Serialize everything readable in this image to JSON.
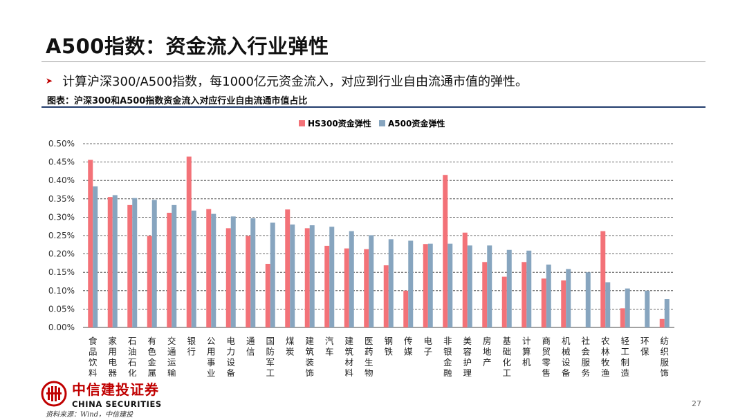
{
  "slide": {
    "title": "A500指数：资金流入行业弹性",
    "bullet": "计算沪深300/A500指数，每1000亿元资金流入，对应到行业自由流通市值的弹性。",
    "caption": "图表：沪深300和A500指数资金流入对应行业自由流通市值占比",
    "logo_cn": "中信建投证券",
    "logo_en": "CHINA SECURITIES",
    "source": "资料来源：Wind，中信建投",
    "page_number": "27"
  },
  "colors": {
    "hs300": "#f37278",
    "a500": "#87a5bf",
    "brand_red": "#c00000",
    "rule_navy": "#1f3b6b"
  },
  "chart_data": {
    "type": "bar",
    "title": "",
    "xlabel": "",
    "ylabel": "",
    "ylim": [
      0,
      0.5
    ],
    "yticks": [
      "0.00%",
      "0.05%",
      "0.10%",
      "0.15%",
      "0.20%",
      "0.25%",
      "0.30%",
      "0.35%",
      "0.40%",
      "0.45%",
      "0.50%"
    ],
    "grid": "dashed horizontal",
    "legend": "top-center",
    "categories": [
      "食品饮料",
      "家用电器",
      "石油石化",
      "有色金属",
      "交通运输",
      "银行",
      "公用事业",
      "电力设备",
      "通信",
      "国防军工",
      "煤炭",
      "建筑装饰",
      "汽车",
      "建筑材料",
      "医药生物",
      "钢铁",
      "传媒",
      "电子",
      "非银金融",
      "美容护理",
      "房地产",
      "基础化工",
      "计算机",
      "商贸零售",
      "机械设备",
      "社会服务",
      "农林牧渔",
      "轻工制造",
      "环保",
      "纺织服饰"
    ],
    "series": [
      {
        "name": "HS300资金弹性",
        "values": [
          0.456,
          0.355,
          0.333,
          0.249,
          0.312,
          0.465,
          0.322,
          0.27,
          0.249,
          0.173,
          0.321,
          0.27,
          0.222,
          0.215,
          0.213,
          0.169,
          0.1,
          0.227,
          0.415,
          0.258,
          0.178,
          0.138,
          0.178,
          0.133,
          0.128,
          0.0,
          0.262,
          0.052,
          0.0,
          0.023
        ]
      },
      {
        "name": "A500资金弹性",
        "values": [
          0.384,
          0.36,
          0.352,
          0.347,
          0.333,
          0.318,
          0.309,
          0.302,
          0.297,
          0.285,
          0.28,
          0.278,
          0.274,
          0.262,
          0.251,
          0.24,
          0.236,
          0.228,
          0.228,
          0.223,
          0.223,
          0.211,
          0.209,
          0.171,
          0.159,
          0.15,
          0.123,
          0.106,
          0.1,
          0.077
        ]
      }
    ]
  }
}
